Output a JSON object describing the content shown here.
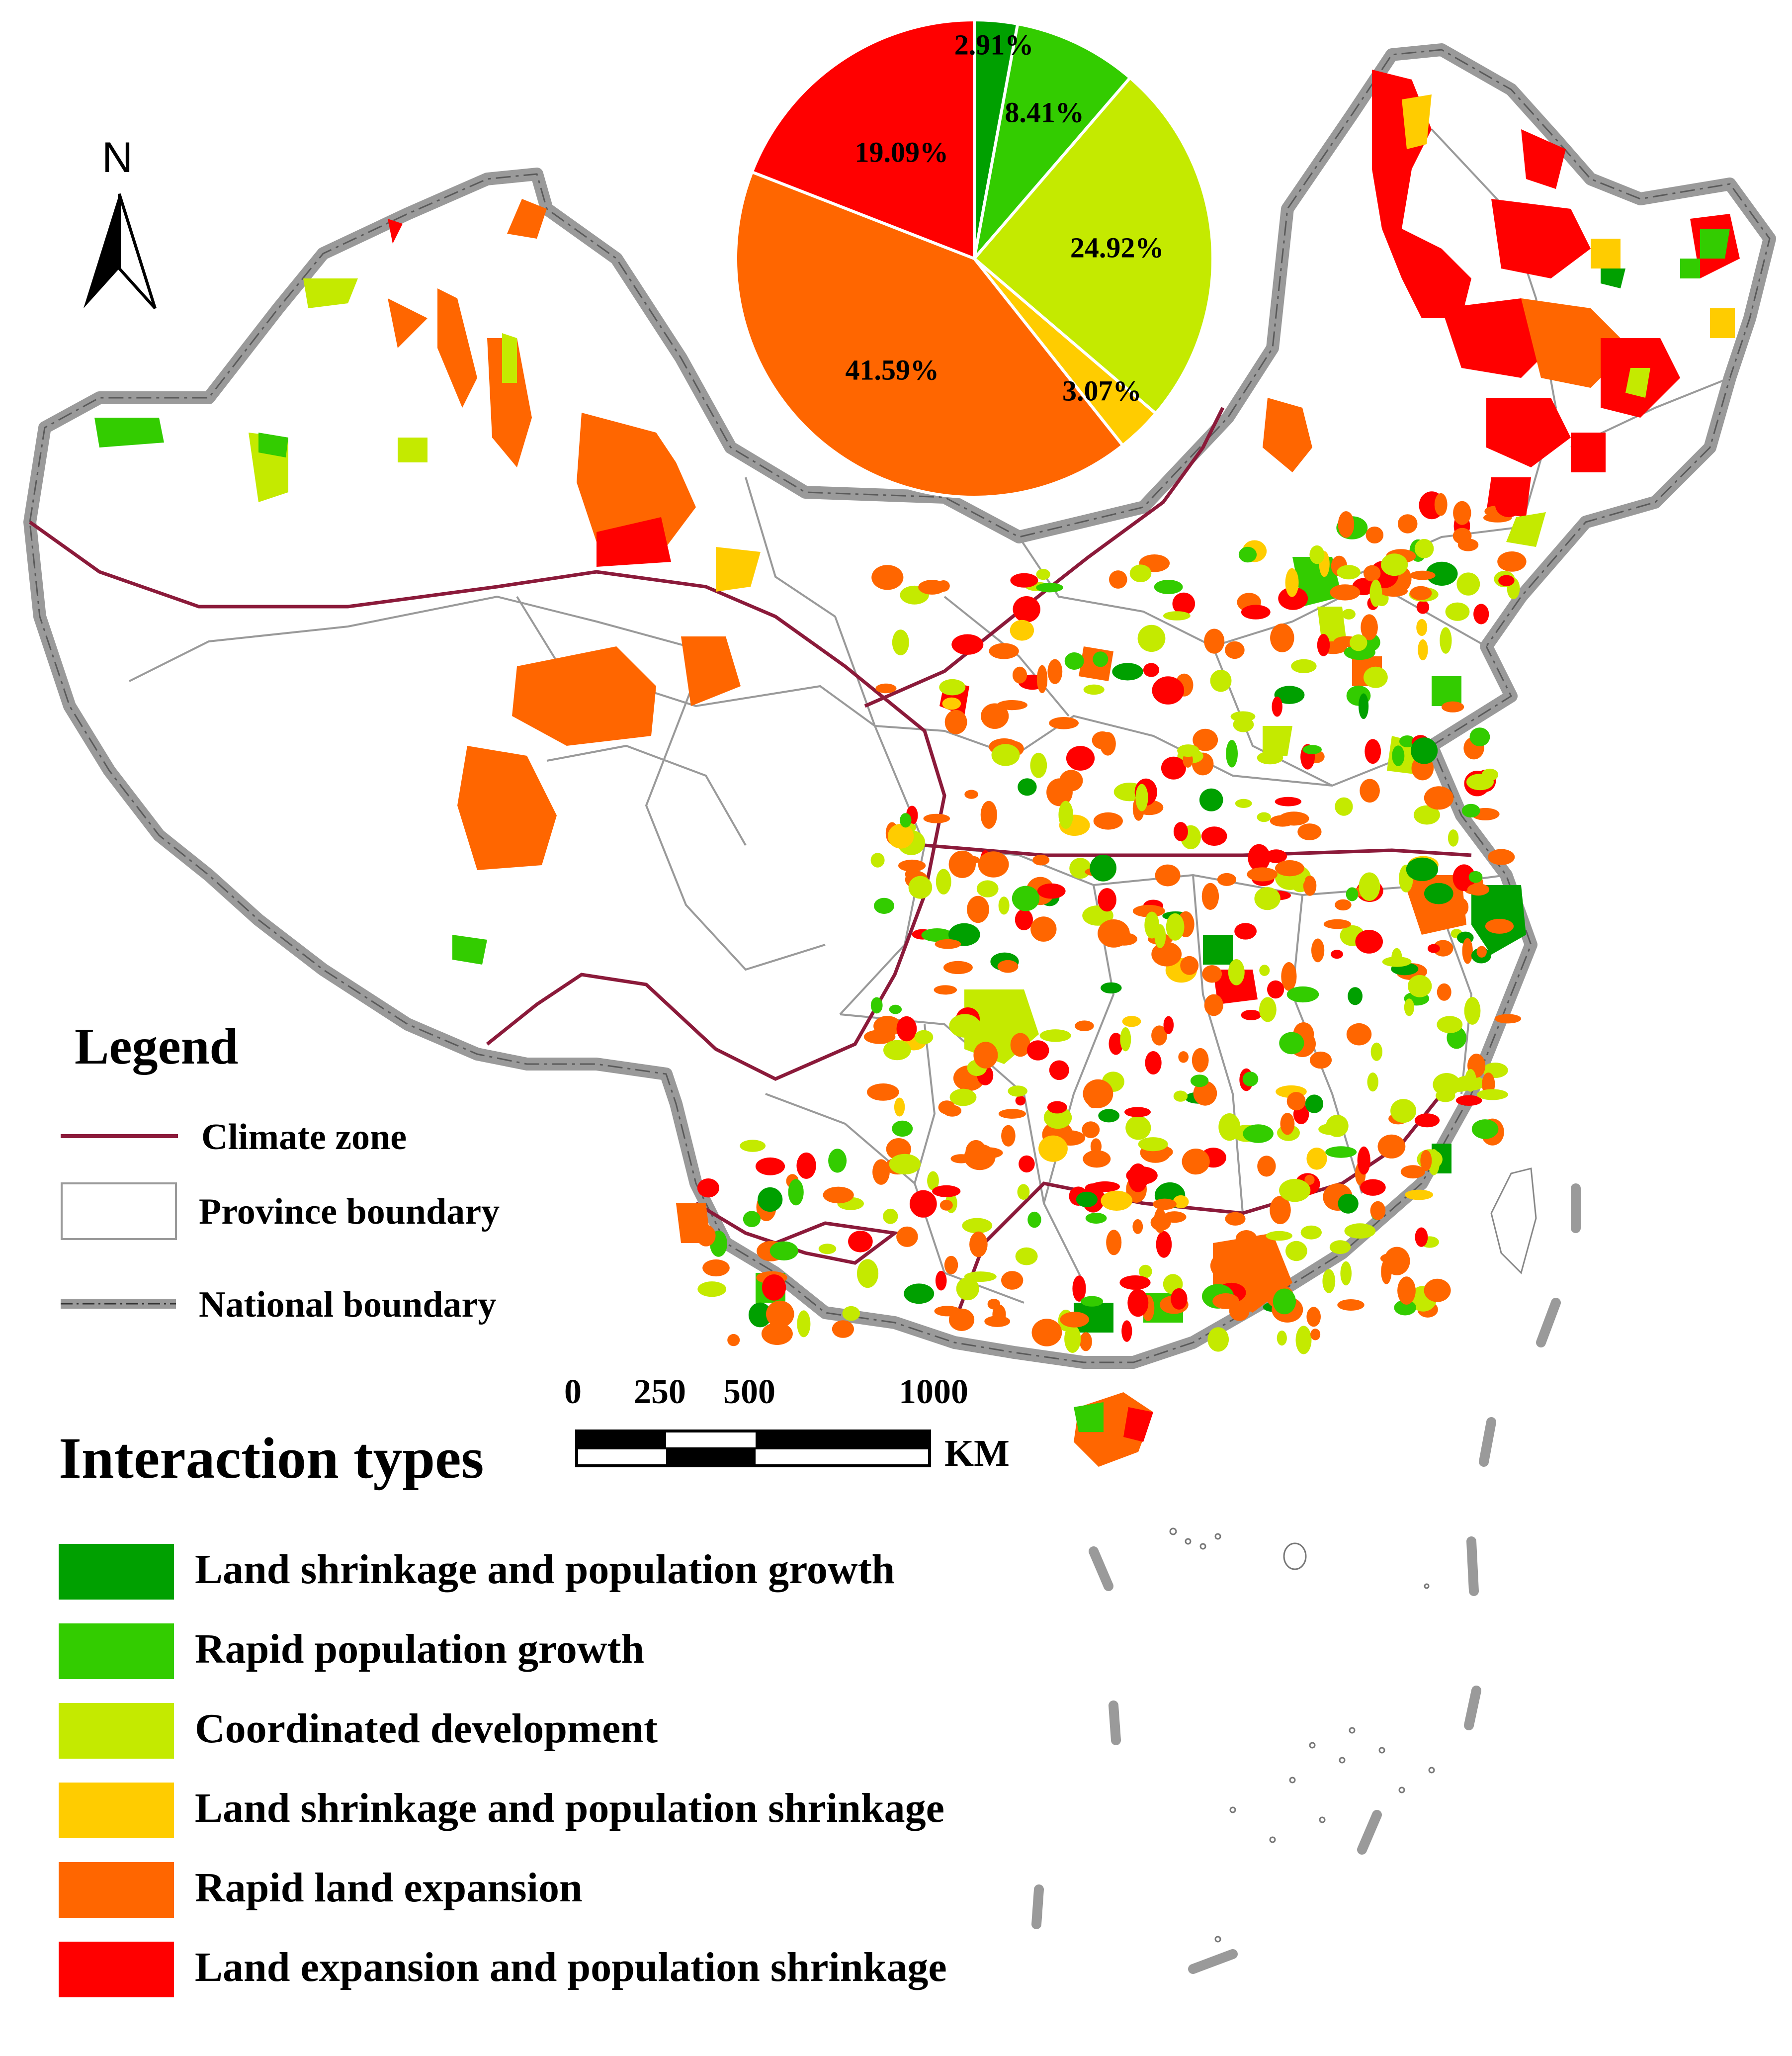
{
  "north_arrow": {
    "label": "N"
  },
  "legend": {
    "title": "Legend",
    "items": [
      {
        "label": "Climate zone",
        "color": "#8b1a3a"
      },
      {
        "label": "Province boundary",
        "color": "#9a9a9a"
      },
      {
        "label": "National boundary",
        "color": "#8c8c8c"
      }
    ]
  },
  "scale_bar": {
    "ticks": [
      "0",
      "250",
      "500",
      "1000"
    ],
    "unit": "KM"
  },
  "interaction_types": {
    "title": "Interaction types",
    "items": [
      {
        "label": "Land shrinkage and population growth",
        "color": "#00a000"
      },
      {
        "label": "Rapid population growth",
        "color": "#33cc00"
      },
      {
        "label": "Coordinated development",
        "color": "#c4ea00"
      },
      {
        "label": "Land shrinkage and population shrinkage",
        "color": "#ffcc00"
      },
      {
        "label": "Rapid land expansion",
        "color": "#ff6600"
      },
      {
        "label": "Land expansion and population shrinkage",
        "color": "#ff0000"
      }
    ]
  },
  "chart_data": {
    "type": "pie",
    "slices": [
      {
        "label": "2.91%",
        "value": 2.91,
        "color": "#00a000"
      },
      {
        "label": "8.41%",
        "value": 8.41,
        "color": "#33cc00"
      },
      {
        "label": "24.92%",
        "value": 24.92,
        "color": "#c4ea00"
      },
      {
        "label": "3.07%",
        "value": 3.07,
        "color": "#ffcc00"
      },
      {
        "label": "41.59%",
        "value": 41.59,
        "color": "#ff6600"
      },
      {
        "label": "19.09%",
        "value": 19.09,
        "color": "#ff0000"
      }
    ]
  }
}
